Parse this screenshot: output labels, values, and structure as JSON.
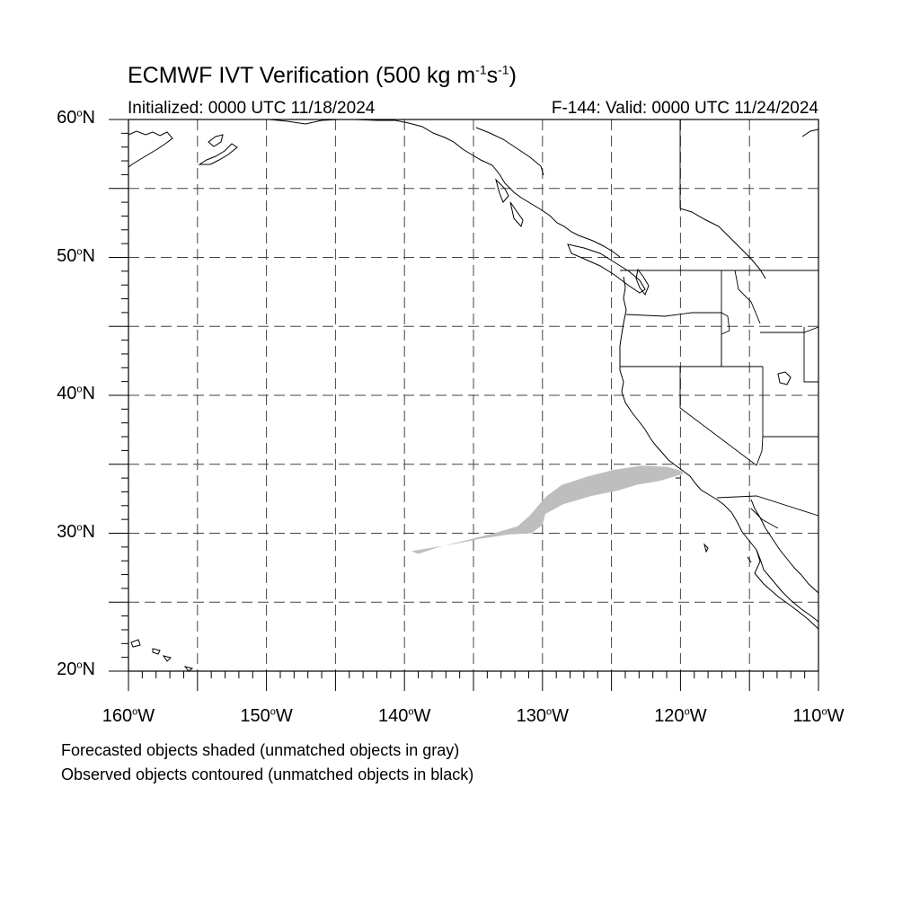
{
  "title": {
    "prefix": "ECMWF IVT Verification (500 kg m",
    "exp1": "-1",
    "mid": "s",
    "exp2": "-1",
    "suffix": ")"
  },
  "initialized": "Initialized: 0000 UTC 11/18/2024",
  "valid": "F-144: Valid: 0000 UTC 11/24/2024",
  "notes": {
    "forecast": "Forecasted objects shaded (unmatched objects in gray)",
    "observed": "Observed objects contoured (unmatched objects in black)"
  },
  "map": {
    "lat_range": [
      20,
      60
    ],
    "lon_range": [
      -160,
      -110
    ],
    "grid": "dashed",
    "grid_spacing_deg": 5,
    "lat_labels": [
      {
        "value": 60,
        "num": "60",
        "deg": "o",
        "hemi": "N"
      },
      {
        "value": 50,
        "num": "50",
        "deg": "o",
        "hemi": "N"
      },
      {
        "value": 40,
        "num": "40",
        "deg": "o",
        "hemi": "N"
      },
      {
        "value": 30,
        "num": "30",
        "deg": "o",
        "hemi": "N"
      },
      {
        "value": 20,
        "num": "20",
        "deg": "o",
        "hemi": "N"
      }
    ],
    "lon_labels": [
      {
        "value": -160,
        "num": "160",
        "deg": "o",
        "hemi": "W"
      },
      {
        "value": -150,
        "num": "150",
        "deg": "o",
        "hemi": "W"
      },
      {
        "value": -140,
        "num": "140",
        "deg": "o",
        "hemi": "W"
      },
      {
        "value": -130,
        "num": "130",
        "deg": "o",
        "hemi": "W"
      },
      {
        "value": -120,
        "num": "120",
        "deg": "o",
        "hemi": "W"
      },
      {
        "value": -110,
        "num": "110",
        "deg": "o",
        "hemi": "W"
      }
    ],
    "forecast_object": {
      "color": "#bebebe",
      "matched": false,
      "outline": [
        [
          -139.5,
          28.7
        ],
        [
          -138.3,
          28.9
        ],
        [
          -136.5,
          29.2
        ],
        [
          -134.5,
          29.6
        ],
        [
          -132.5,
          29.9
        ],
        [
          -130.8,
          30.0
        ],
        [
          -130.0,
          30.6
        ],
        [
          -129.8,
          31.4
        ],
        [
          -128.5,
          32.1
        ],
        [
          -126.5,
          32.7
        ],
        [
          -124.5,
          33.1
        ],
        [
          -123.2,
          33.5
        ],
        [
          -121.5,
          33.8
        ],
        [
          -120.5,
          34.1
        ],
        [
          -119.8,
          34.3
        ],
        [
          -119.9,
          34.5
        ],
        [
          -120.9,
          34.8
        ],
        [
          -122.8,
          34.9
        ],
        [
          -124.8,
          34.6
        ],
        [
          -126.8,
          34.1
        ],
        [
          -128.6,
          33.5
        ],
        [
          -129.7,
          32.7
        ],
        [
          -130.4,
          31.9
        ],
        [
          -130.9,
          31.3
        ],
        [
          -131.8,
          30.5
        ],
        [
          -133.5,
          30.0
        ],
        [
          -135.5,
          29.5
        ],
        [
          -137.5,
          29.0
        ],
        [
          -139.0,
          28.5
        ]
      ]
    },
    "colors": {
      "coast": "#000000",
      "grid": "#555555",
      "frame": "#000000"
    }
  }
}
